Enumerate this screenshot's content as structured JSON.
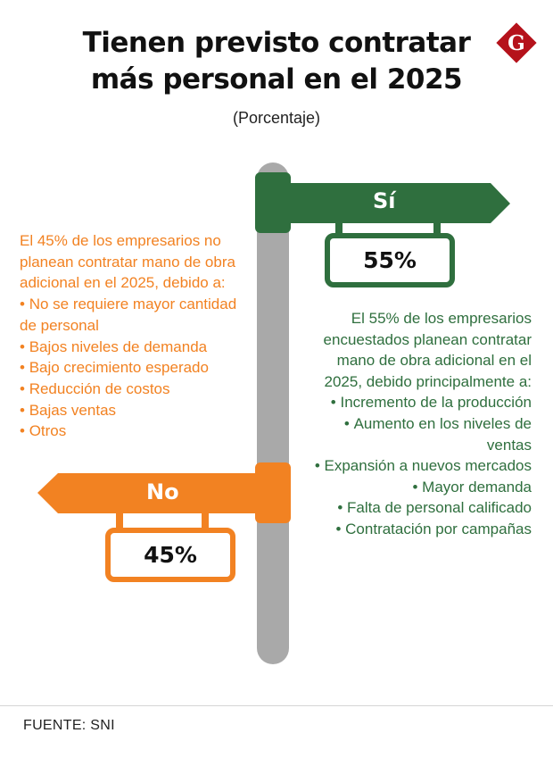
{
  "title_line1": "Tienen previsto contratar",
  "title_line2": "más personal en el 2025",
  "subtitle": "(Porcentaje)",
  "logo_letter": "G",
  "source": "FUENTE: SNI",
  "colors": {
    "yes": "#2f6f3e",
    "no": "#f28222",
    "pole": "#a9a9a9",
    "logo": "#b5121b"
  },
  "chart_data": {
    "type": "pie",
    "categories": [
      "Sí",
      "No"
    ],
    "values": [
      55,
      45
    ],
    "value_labels": [
      "55%",
      "45%"
    ],
    "unit": "%"
  },
  "yes_text": {
    "intro": "El 55% de los empresarios encuestados planean contratar mano de obra adicional en el 2025, debido principalmente a:",
    "reasons": [
      "Incremento de la producción",
      "Aumento en los niveles de ventas",
      "Expansión a nuevos mercados",
      "Mayor demanda",
      "Falta de personal calificado",
      "Contratación por campañas"
    ]
  },
  "no_text": {
    "intro": "El 45% de los empresarios no planean contratar mano de obra adicional en el 2025, debido a:",
    "reasons": [
      "No se requiere mayor cantidad de personal",
      "Bajos niveles de demanda",
      "Bajo crecimiento esperado",
      "Reducción de costos",
      "Bajas ventas",
      "Otros"
    ]
  }
}
